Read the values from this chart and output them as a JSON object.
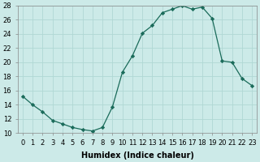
{
  "x": [
    0,
    1,
    2,
    3,
    4,
    5,
    6,
    7,
    8,
    9,
    10,
    11,
    12,
    13,
    14,
    15,
    16,
    17,
    18,
    19,
    20,
    21,
    22,
    23
  ],
  "y": [
    15.2,
    14.0,
    13.0,
    11.8,
    11.3,
    10.8,
    10.5,
    10.3,
    10.8,
    13.7,
    18.6,
    20.9,
    24.1,
    25.2,
    27.0,
    27.5,
    28.0,
    27.5,
    27.8,
    26.2,
    20.2,
    20.0,
    17.7,
    16.7
  ],
  "line_color": "#1a6b5a",
  "marker": "D",
  "marker_size": 2.2,
  "bg_color": "#cceae8",
  "grid_color": "#b0d8d4",
  "xlabel": "Humidex (Indice chaleur)",
  "ylim": [
    10,
    28
  ],
  "xlim_min": -0.5,
  "xlim_max": 23.5,
  "yticks": [
    10,
    12,
    14,
    16,
    18,
    20,
    22,
    24,
    26,
    28
  ],
  "xticks": [
    0,
    1,
    2,
    3,
    4,
    5,
    6,
    7,
    8,
    9,
    10,
    11,
    12,
    13,
    14,
    15,
    16,
    17,
    18,
    19,
    20,
    21,
    22,
    23
  ],
  "xlabel_fontsize": 7.0,
  "tick_fontsize": 6.0
}
